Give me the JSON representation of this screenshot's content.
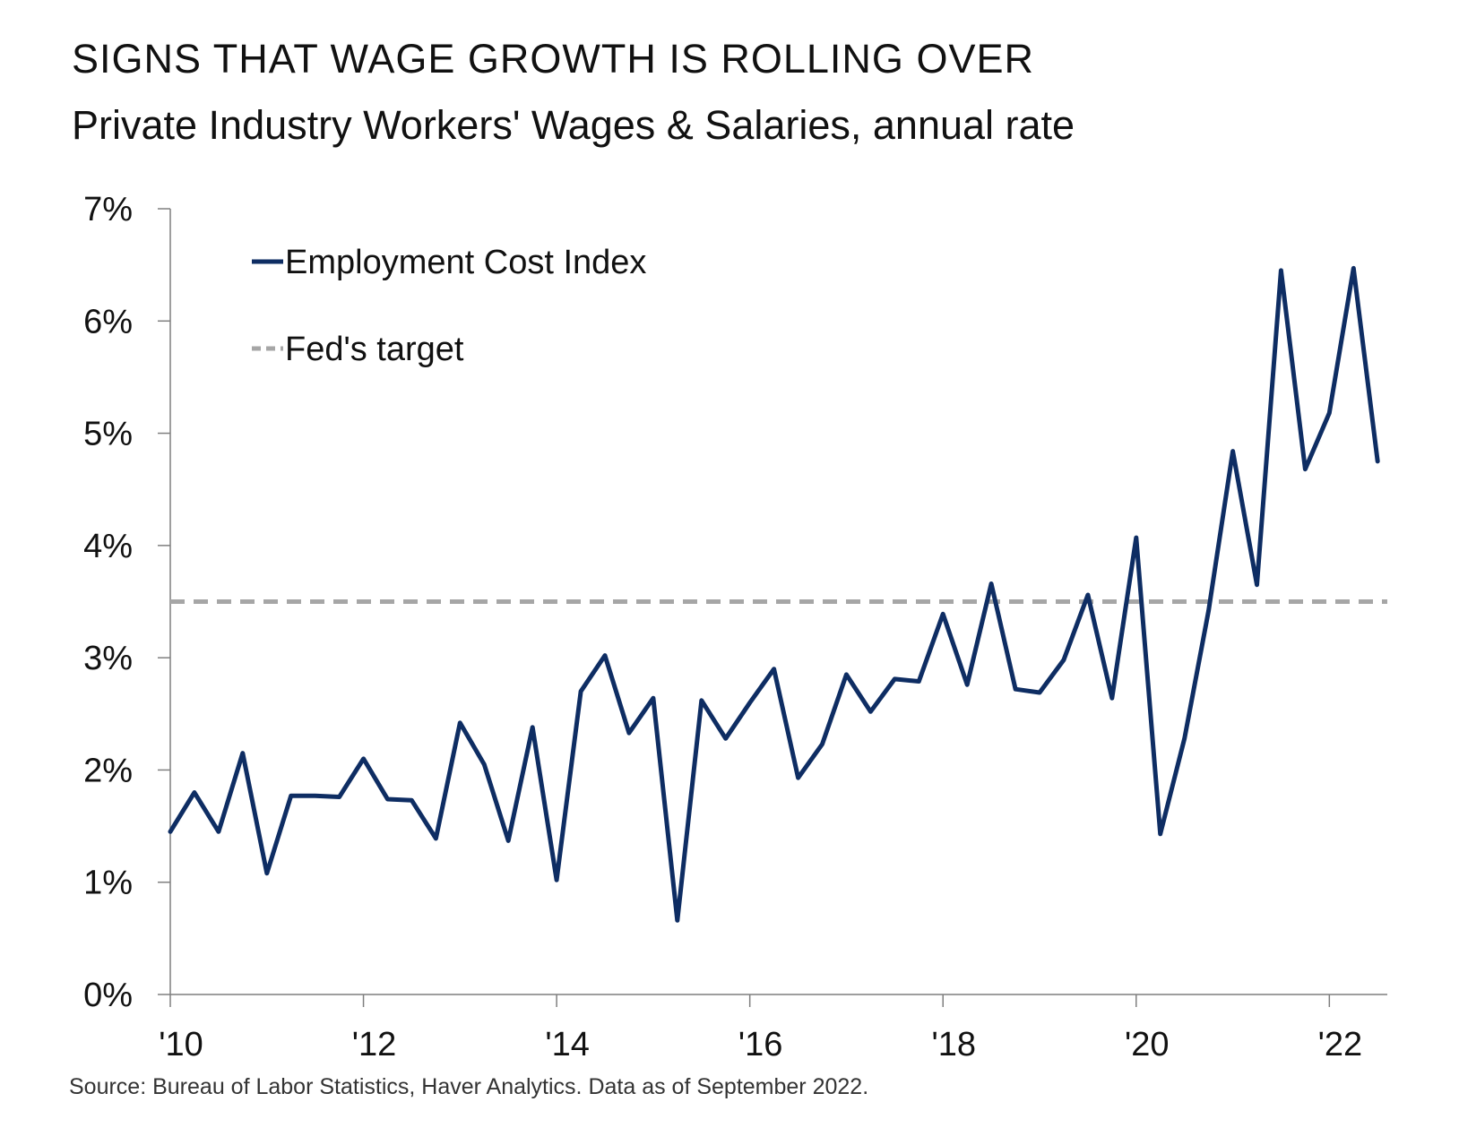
{
  "chart_data": {
    "type": "line",
    "title": "SIGNS THAT WAGE GROWTH IS ROLLING OVER",
    "subtitle": "Private Industry Workers' Wages & Salaries, annual rate",
    "source": "Source: Bureau of Labor Statistics, Haver Analytics. Data as of September 2022.",
    "xlabel": "",
    "ylabel": "",
    "xlim": [
      2010.0,
      2022.6
    ],
    "ylim": [
      0,
      7
    ],
    "x_ticks": [
      2010,
      2012,
      2014,
      2016,
      2018,
      2020,
      2022
    ],
    "x_tick_labels": [
      "'10",
      "'12",
      "'14",
      "'16",
      "'18",
      "'20",
      "'22"
    ],
    "y_ticks": [
      0,
      1,
      2,
      3,
      4,
      5,
      6,
      7
    ],
    "y_tick_labels": [
      "0%",
      "1%",
      "2%",
      "3%",
      "4%",
      "5%",
      "6%",
      "7%"
    ],
    "grid": false,
    "legend_position": "top-left",
    "series": [
      {
        "name": "Employment Cost Index",
        "style": "solid",
        "color": "#0e2d63",
        "x": [
          2010.0,
          2010.25,
          2010.5,
          2010.75,
          2011.0,
          2011.25,
          2011.5,
          2011.75,
          2012.0,
          2012.25,
          2012.5,
          2012.75,
          2013.0,
          2013.25,
          2013.5,
          2013.75,
          2014.0,
          2014.25,
          2014.5,
          2014.75,
          2015.0,
          2015.25,
          2015.5,
          2015.75,
          2016.0,
          2016.25,
          2016.5,
          2016.75,
          2017.0,
          2017.25,
          2017.5,
          2017.75,
          2018.0,
          2018.25,
          2018.5,
          2018.75,
          2019.0,
          2019.25,
          2019.5,
          2019.75,
          2020.0,
          2020.25,
          2020.5,
          2020.75,
          2021.0,
          2021.25,
          2021.5,
          2021.75,
          2022.0,
          2022.25,
          2022.5
        ],
        "values": [
          1.45,
          1.8,
          1.45,
          2.15,
          1.08,
          1.77,
          1.77,
          1.76,
          2.1,
          1.74,
          1.73,
          1.39,
          2.42,
          2.05,
          1.37,
          2.38,
          1.02,
          2.7,
          3.02,
          2.33,
          2.64,
          0.66,
          2.62,
          2.28,
          2.6,
          2.9,
          1.93,
          2.23,
          2.85,
          2.52,
          2.81,
          2.79,
          3.39,
          2.76,
          3.66,
          2.72,
          2.69,
          2.98,
          3.56,
          2.64,
          4.07,
          1.43,
          2.28,
          3.42,
          4.84,
          3.65,
          6.45,
          4.68,
          5.18,
          6.47,
          4.75
        ]
      },
      {
        "name": "Fed's target",
        "style": "dashed",
        "color": "#a6a6a6",
        "x": [
          2010.0,
          2022.6
        ],
        "values": [
          3.5,
          3.5
        ]
      }
    ]
  }
}
